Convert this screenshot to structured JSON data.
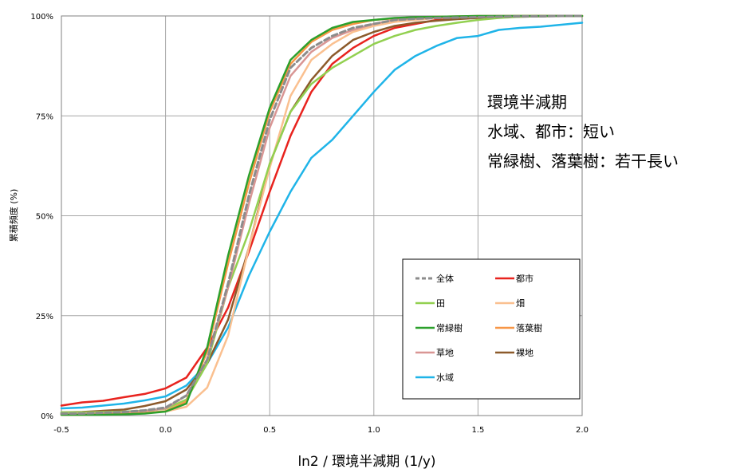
{
  "chart_data": {
    "type": "line",
    "title": "",
    "xlabel": "ln2 / 環境半減期 (1/y)",
    "ylabel": "累積頻度 (%)",
    "xlim": [
      -0.5,
      2.0
    ],
    "ylim": [
      0,
      100
    ],
    "x_ticks": [
      "-0.5",
      "0.0",
      "0.5",
      "1.0",
      "1.5",
      "2.0"
    ],
    "y_ticks": [
      "0%",
      "25%",
      "50%",
      "75%",
      "100%"
    ],
    "grid": true,
    "legend_position": "lower-right",
    "x": [
      -0.5,
      -0.4,
      -0.3,
      -0.2,
      -0.1,
      0.0,
      0.1,
      0.2,
      0.3,
      0.4,
      0.5,
      0.6,
      0.7,
      0.8,
      0.9,
      1.0,
      1.1,
      1.2,
      1.3,
      1.4,
      1.5,
      1.6,
      1.7,
      1.8,
      1.9,
      2.0
    ],
    "series": [
      {
        "name": "全体",
        "color": "#8c8c8c",
        "dashed": true,
        "values": [
          0.5,
          0.5,
          0.7,
          0.9,
          1.3,
          2.0,
          5,
          14,
          33,
          55,
          74,
          87,
          92,
          95,
          97,
          98,
          99,
          99.3,
          99.5,
          99.6,
          99.7,
          99.8,
          99.9,
          99.9,
          100,
          100
        ]
      },
      {
        "name": "都市",
        "color": "#e8231e",
        "values": [
          2.5,
          3.3,
          3.7,
          4.6,
          5.4,
          6.8,
          9.5,
          17,
          27,
          41,
          56,
          70,
          81,
          88,
          92,
          95,
          97,
          98,
          99,
          99.5,
          99.7,
          99.8,
          99.9,
          100,
          100,
          100
        ]
      },
      {
        "name": "田",
        "color": "#92d050",
        "values": [
          0.8,
          0.8,
          0.9,
          1.0,
          1.2,
          1.7,
          4,
          13,
          32,
          46,
          63,
          76,
          83,
          87,
          90,
          93,
          95,
          96.5,
          97.5,
          98.3,
          99,
          99.5,
          99.8,
          99.9,
          100,
          100
        ]
      },
      {
        "name": "畑",
        "color": "#fac090",
        "values": [
          0.3,
          0.4,
          0.5,
          0.6,
          0.8,
          1.0,
          2.2,
          7,
          20,
          42,
          62,
          80,
          89,
          93,
          96,
          97.5,
          98.5,
          99,
          99.5,
          99.7,
          99.8,
          99.9,
          100,
          100,
          100,
          100
        ]
      },
      {
        "name": "常緑樹",
        "color": "#2ca02c",
        "values": [
          0.2,
          0.2,
          0.2,
          0.3,
          0.5,
          1.0,
          3,
          17,
          40,
          60,
          77,
          89,
          94,
          97,
          98.5,
          99,
          99.5,
          99.7,
          99.8,
          99.9,
          100,
          100,
          100,
          100,
          100,
          100
        ]
      },
      {
        "name": "落葉樹",
        "color": "#f79646",
        "values": [
          0.2,
          0.2,
          0.3,
          0.4,
          0.6,
          1.1,
          3.5,
          16,
          38,
          58,
          76,
          88,
          93.5,
          96.5,
          98,
          99,
          99.4,
          99.6,
          99.8,
          99.9,
          100,
          100,
          100,
          100,
          100,
          100
        ]
      },
      {
        "name": "草地",
        "color": "#d99694",
        "values": [
          0.4,
          0.5,
          0.6,
          0.8,
          1.1,
          1.8,
          5,
          14,
          32,
          53,
          72,
          85,
          91,
          94.5,
          96.5,
          98,
          99,
          99.3,
          99.6,
          99.8,
          99.9,
          100,
          100,
          100,
          100,
          100
        ]
      },
      {
        "name": "裸地",
        "color": "#8c5a2b",
        "values": [
          0.8,
          0.9,
          1.2,
          1.5,
          2.4,
          3.6,
          6.5,
          13,
          24,
          42,
          63,
          76,
          84,
          90,
          94,
          96,
          97.5,
          98.3,
          98.8,
          99.2,
          99.5,
          99.7,
          99.8,
          99.9,
          100,
          100
        ]
      },
      {
        "name": "水域",
        "color": "#1fb4e8",
        "values": [
          1.8,
          2.0,
          2.5,
          3.0,
          3.8,
          4.8,
          7.5,
          13,
          22,
          35,
          46,
          56,
          64.5,
          69,
          75,
          81,
          86.5,
          90,
          92.5,
          94.5,
          95,
          96.5,
          97,
          97.3,
          97.8,
          98.3
        ]
      }
    ]
  },
  "annotation": {
    "line1": "環境半減期",
    "line2": "水域、都市：短い",
    "line3": "常緑樹、落葉樹：若干長い"
  }
}
